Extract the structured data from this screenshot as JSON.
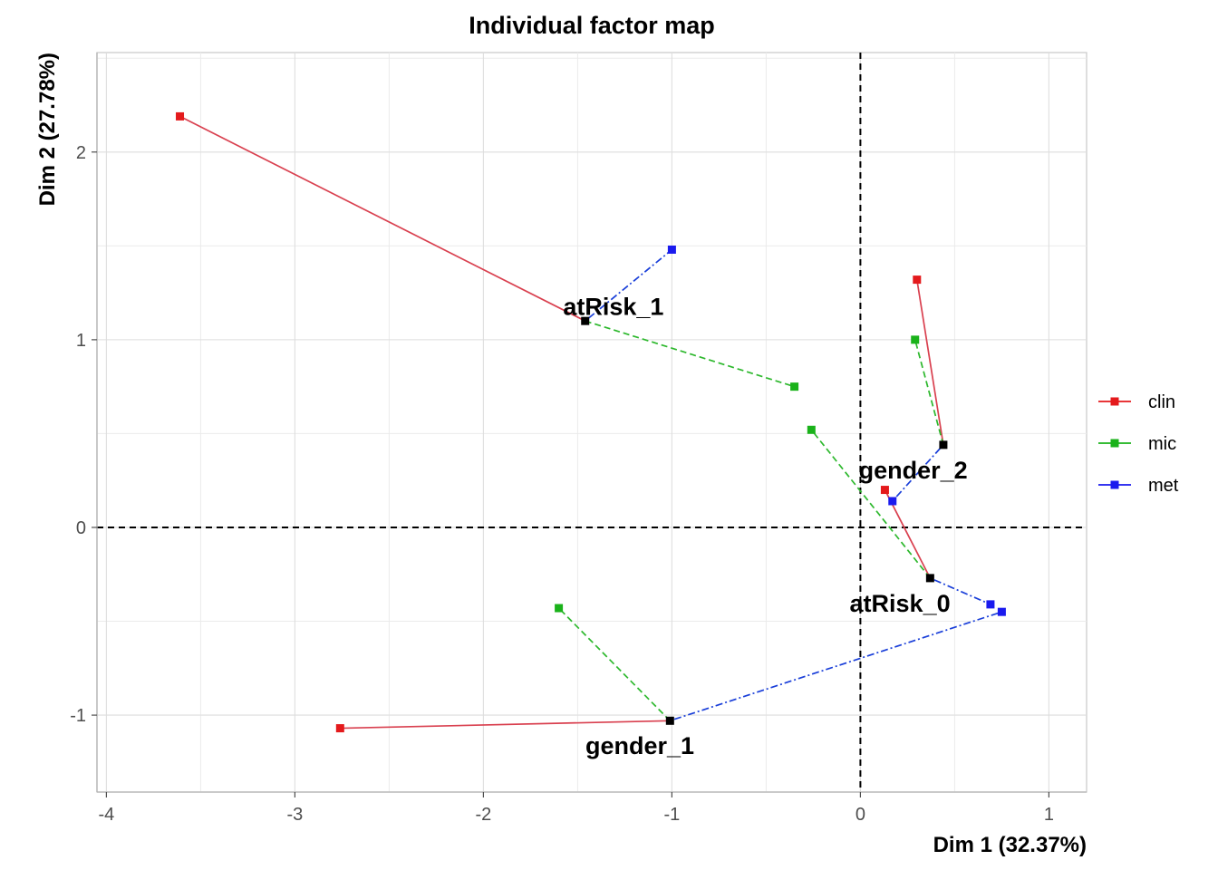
{
  "chart_data": {
    "type": "scatter",
    "title": "Individual factor map",
    "xlabel": "Dim 1 (32.37%)",
    "ylabel": "Dim 2 (27.78%)",
    "xlim": [
      -4.05,
      1.2
    ],
    "ylim": [
      -1.41,
      2.53
    ],
    "xticks": [
      -4,
      -3,
      -2,
      -1,
      0,
      1
    ],
    "yticks": [
      -1,
      0,
      1,
      2
    ],
    "xtick_labels": [
      "-4",
      "-3",
      "-2",
      "-1",
      "0",
      "1"
    ],
    "ytick_labels": [
      "-1",
      "0",
      "1",
      "2"
    ],
    "grid": true,
    "reference_lines": {
      "x": 0,
      "y": 0,
      "style": "dashed"
    },
    "legend_placement": "right",
    "series": [
      {
        "name": "clin",
        "color": "#E41A1C",
        "line_color": "#D9404F",
        "dash": "solid"
      },
      {
        "name": "mic",
        "color": "#1AB21A",
        "line_color": "#2DB82D",
        "dash": "dashed"
      },
      {
        "name": "met",
        "color": "#1A1AEE",
        "line_color": "#1A3FD9",
        "dash": "dotdash"
      }
    ],
    "centers": [
      {
        "label": "atRisk_1",
        "x": -1.46,
        "y": 1.1,
        "label_x": -1.31,
        "label_y": 1.18
      },
      {
        "label": "gender_2",
        "x": 0.44,
        "y": 0.44,
        "label_x": 0.28,
        "label_y": 0.31
      },
      {
        "label": "atRisk_0",
        "x": 0.37,
        "y": -0.27,
        "label_x": 0.21,
        "label_y": -0.4
      },
      {
        "label": "gender_1",
        "x": -1.01,
        "y": -1.03,
        "label_x": -1.17,
        "label_y": -1.16
      }
    ],
    "partial_points": [
      {
        "center": "atRisk_1",
        "group": "clin",
        "x": -3.61,
        "y": 2.19
      },
      {
        "center": "atRisk_1",
        "group": "mic",
        "x": -0.35,
        "y": 0.75
      },
      {
        "center": "atRisk_1",
        "group": "met",
        "x": -1.0,
        "y": 1.48
      },
      {
        "center": "gender_2",
        "group": "clin",
        "x": 0.3,
        "y": 1.32
      },
      {
        "center": "gender_2",
        "group": "mic",
        "x": 0.29,
        "y": 1.0
      },
      {
        "center": "gender_2",
        "group": "met",
        "x": 0.17,
        "y": 0.14
      },
      {
        "center": "atRisk_0",
        "group": "clin",
        "x": 0.13,
        "y": 0.2
      },
      {
        "center": "atRisk_0",
        "group": "mic",
        "x": -0.26,
        "y": 0.52
      },
      {
        "center": "atRisk_0",
        "group": "met",
        "x": 0.69,
        "y": -0.41
      },
      {
        "center": "gender_1",
        "group": "clin",
        "x": -2.76,
        "y": -1.07
      },
      {
        "center": "gender_1",
        "group": "mic",
        "x": -1.6,
        "y": -0.43
      },
      {
        "center": "gender_1",
        "group": "met",
        "x": 0.75,
        "y": -0.45
      }
    ]
  }
}
